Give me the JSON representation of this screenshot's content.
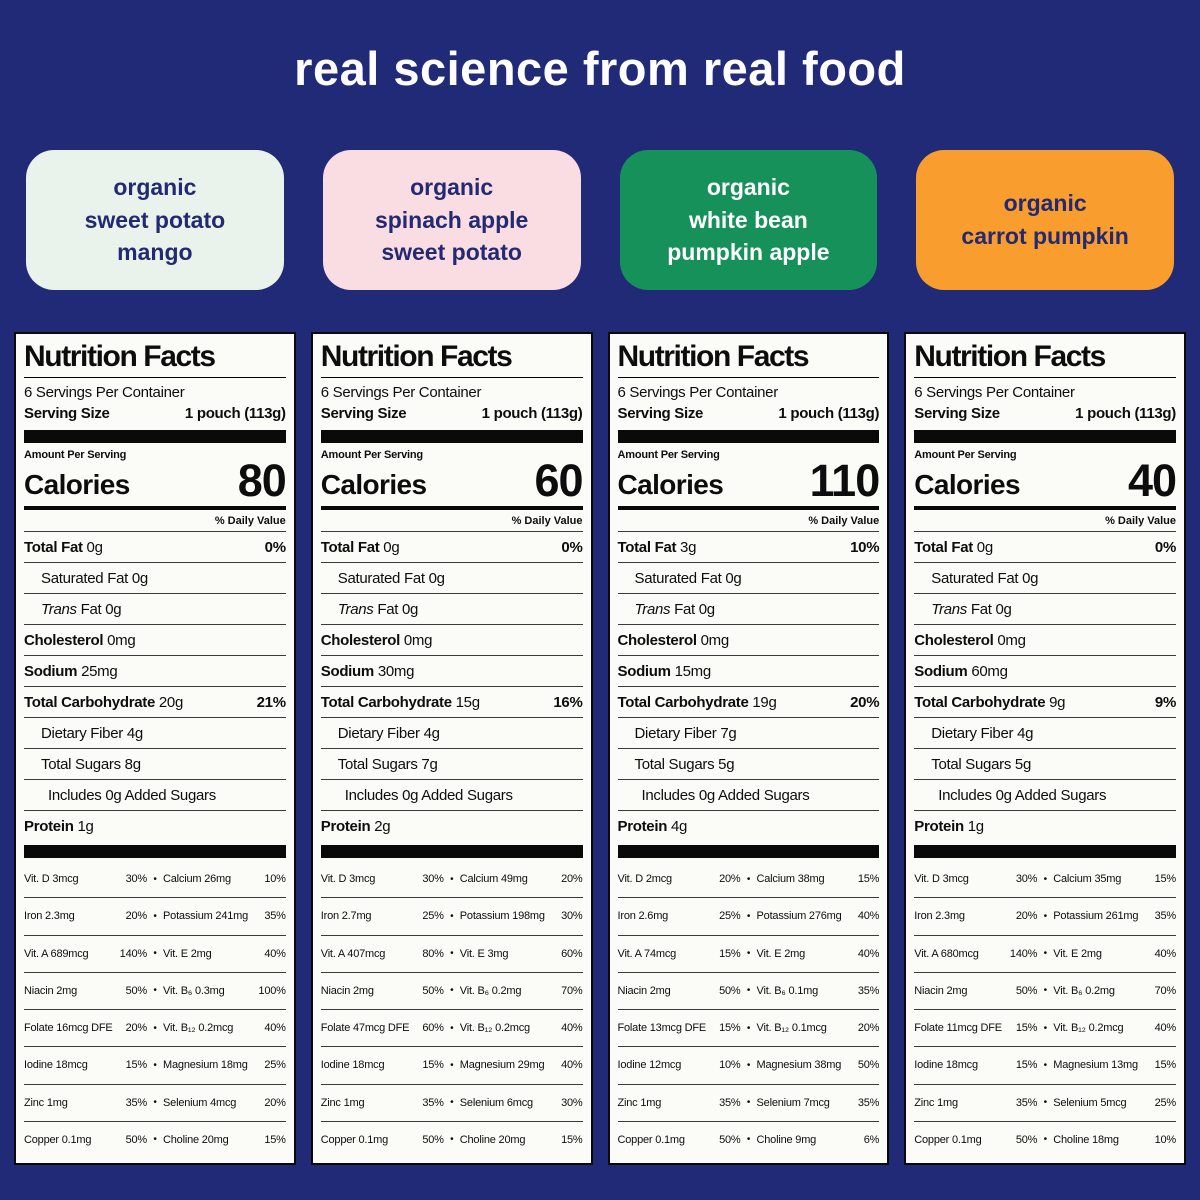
{
  "header": {
    "title": "real science from real food"
  },
  "colors": {
    "background": "#212a77",
    "panel_background": "#fbfbf7",
    "panel_border": "#0a0a0a",
    "label_text": "#0d0d0d",
    "title_text": "#fdfdff"
  },
  "label_common": {
    "title": "Nutrition Facts",
    "servings_per_container": "6 Servings Per Container",
    "serving_size_label": "Serving Size",
    "serving_size_value": "1 pouch (113g)",
    "amount_per_serving": "Amount Per Serving",
    "calories_label": "Calories",
    "daily_value_header": "% Daily Value",
    "column_bullet": "•"
  },
  "products": [
    {
      "pill": {
        "lines": [
          "organic",
          "sweet potato",
          "mango"
        ],
        "bg": "#e9f3ec",
        "text": "#232a72"
      },
      "calories": "80",
      "nutrients": [
        {
          "name": "Total Fat",
          "amount": "0g",
          "dv": "0%",
          "style": "bold"
        },
        {
          "name": "Saturated Fat",
          "amount": "0g",
          "dv": "",
          "style": "indent"
        },
        {
          "name": "Trans Fat",
          "amount": "0g",
          "dv": "",
          "style": "indent-italic"
        },
        {
          "name": "Cholesterol",
          "amount": "0mg",
          "dv": "",
          "style": "bold"
        },
        {
          "name": "Sodium",
          "amount": "25mg",
          "dv": "",
          "style": "bold"
        },
        {
          "name": "Total Carbohydrate",
          "amount": "20g",
          "dv": "21%",
          "style": "bold"
        },
        {
          "name": "Dietary Fiber",
          "amount": "4g",
          "dv": "",
          "style": "indent"
        },
        {
          "name": "Total Sugars",
          "amount": "8g",
          "dv": "",
          "style": "indent"
        },
        {
          "name": "Includes 0g Added Sugars",
          "amount": "",
          "dv": "",
          "style": "indent2"
        },
        {
          "name": "Protein",
          "amount": "1g",
          "dv": "",
          "style": "bold"
        }
      ],
      "micros": [
        {
          "left": "Vit. D 3mcg",
          "left_dv": "30%",
          "right": "Calcium 26mg",
          "right_dv": "10%"
        },
        {
          "left": "Iron 2.3mg",
          "left_dv": "20%",
          "right": "Potassium 241mg",
          "right_dv": "35%"
        },
        {
          "left": "Vit. A 689mcg",
          "left_dv": "140%",
          "right": "Vit. E 2mg",
          "right_dv": "40%"
        },
        {
          "left": "Niacin 2mg",
          "left_dv": "50%",
          "right": "Vit. B₆ 0.3mg",
          "right_dv": "100%"
        },
        {
          "left": "Folate 16mcg DFE",
          "left_dv": "20%",
          "right": "Vit. B₁₂ 0.2mcg",
          "right_dv": "40%"
        },
        {
          "left": "Iodine 18mcg",
          "left_dv": "15%",
          "right": "Magnesium 18mg",
          "right_dv": "25%"
        },
        {
          "left": "Zinc 1mg",
          "left_dv": "35%",
          "right": "Selenium 4mcg",
          "right_dv": "20%"
        },
        {
          "left": "Copper 0.1mg",
          "left_dv": "50%",
          "right": "Choline 20mg",
          "right_dv": "15%"
        }
      ]
    },
    {
      "pill": {
        "lines": [
          "organic",
          "spinach apple",
          "sweet potato"
        ],
        "bg": "#fadce3",
        "text": "#232a72"
      },
      "calories": "60",
      "nutrients": [
        {
          "name": "Total Fat",
          "amount": "0g",
          "dv": "0%",
          "style": "bold"
        },
        {
          "name": "Saturated Fat",
          "amount": "0g",
          "dv": "",
          "style": "indent"
        },
        {
          "name": "Trans Fat",
          "amount": "0g",
          "dv": "",
          "style": "indent-italic"
        },
        {
          "name": "Cholesterol",
          "amount": "0mg",
          "dv": "",
          "style": "bold"
        },
        {
          "name": "Sodium",
          "amount": "30mg",
          "dv": "",
          "style": "bold"
        },
        {
          "name": "Total Carbohydrate",
          "amount": "15g",
          "dv": "16%",
          "style": "bold"
        },
        {
          "name": "Dietary Fiber",
          "amount": "4g",
          "dv": "",
          "style": "indent"
        },
        {
          "name": "Total Sugars",
          "amount": "7g",
          "dv": "",
          "style": "indent"
        },
        {
          "name": "Includes 0g Added Sugars",
          "amount": "",
          "dv": "",
          "style": "indent2"
        },
        {
          "name": "Protein",
          "amount": "2g",
          "dv": "",
          "style": "bold"
        }
      ],
      "micros": [
        {
          "left": "Vit. D 3mcg",
          "left_dv": "30%",
          "right": "Calcium 49mg",
          "right_dv": "20%"
        },
        {
          "left": "Iron 2.7mg",
          "left_dv": "25%",
          "right": "Potassium 198mg",
          "right_dv": "30%"
        },
        {
          "left": "Vit. A 407mcg",
          "left_dv": "80%",
          "right": "Vit. E 3mg",
          "right_dv": "60%"
        },
        {
          "left": "Niacin 2mg",
          "left_dv": "50%",
          "right": "Vit. B₆ 0.2mg",
          "right_dv": "70%"
        },
        {
          "left": "Folate 47mcg DFE",
          "left_dv": "60%",
          "right": "Vit. B₁₂ 0.2mcg",
          "right_dv": "40%"
        },
        {
          "left": "Iodine 18mcg",
          "left_dv": "15%",
          "right": "Magnesium 29mg",
          "right_dv": "40%"
        },
        {
          "left": "Zinc 1mg",
          "left_dv": "35%",
          "right": "Selenium 6mcg",
          "right_dv": "30%"
        },
        {
          "left": "Copper 0.1mg",
          "left_dv": "50%",
          "right": "Choline 20mg",
          "right_dv": "15%"
        }
      ]
    },
    {
      "pill": {
        "lines": [
          "organic",
          "white bean",
          "pumpkin apple"
        ],
        "bg": "#17915a",
        "text": "#ffffff"
      },
      "calories": "110",
      "nutrients": [
        {
          "name": "Total Fat",
          "amount": "3g",
          "dv": "10%",
          "style": "bold"
        },
        {
          "name": "Saturated Fat",
          "amount": "0g",
          "dv": "",
          "style": "indent"
        },
        {
          "name": "Trans Fat",
          "amount": "0g",
          "dv": "",
          "style": "indent-italic"
        },
        {
          "name": "Cholesterol",
          "amount": "0mg",
          "dv": "",
          "style": "bold"
        },
        {
          "name": "Sodium",
          "amount": "15mg",
          "dv": "",
          "style": "bold"
        },
        {
          "name": "Total Carbohydrate",
          "amount": "19g",
          "dv": "20%",
          "style": "bold"
        },
        {
          "name": "Dietary Fiber",
          "amount": "7g",
          "dv": "",
          "style": "indent"
        },
        {
          "name": "Total Sugars",
          "amount": "5g",
          "dv": "",
          "style": "indent"
        },
        {
          "name": "Includes 0g Added Sugars",
          "amount": "",
          "dv": "",
          "style": "indent2"
        },
        {
          "name": "Protein",
          "amount": "4g",
          "dv": "",
          "style": "bold"
        }
      ],
      "micros": [
        {
          "left": "Vit. D 2mcg",
          "left_dv": "20%",
          "right": "Calcium 38mg",
          "right_dv": "15%"
        },
        {
          "left": "Iron 2.6mg",
          "left_dv": "25%",
          "right": "Potassium 276mg",
          "right_dv": "40%"
        },
        {
          "left": "Vit. A 74mcg",
          "left_dv": "15%",
          "right": "Vit. E 2mg",
          "right_dv": "40%"
        },
        {
          "left": "Niacin 2mg",
          "left_dv": "50%",
          "right": "Vit. B₆ 0.1mg",
          "right_dv": "35%"
        },
        {
          "left": "Folate 13mcg DFE",
          "left_dv": "15%",
          "right": "Vit. B₁₂ 0.1mcg",
          "right_dv": "20%"
        },
        {
          "left": "Iodine 12mcg",
          "left_dv": "10%",
          "right": "Magnesium 38mg",
          "right_dv": "50%"
        },
        {
          "left": "Zinc 1mg",
          "left_dv": "35%",
          "right": "Selenium 7mcg",
          "right_dv": "35%"
        },
        {
          "left": "Copper 0.1mg",
          "left_dv": "50%",
          "right": "Choline 9mg",
          "right_dv": "6%"
        }
      ]
    },
    {
      "pill": {
        "lines": [
          "organic",
          "carrot pumpkin"
        ],
        "bg": "#f89d2e",
        "text": "#232a72"
      },
      "calories": "40",
      "nutrients": [
        {
          "name": "Total Fat",
          "amount": "0g",
          "dv": "0%",
          "style": "bold"
        },
        {
          "name": "Saturated Fat",
          "amount": "0g",
          "dv": "",
          "style": "indent"
        },
        {
          "name": "Trans Fat",
          "amount": "0g",
          "dv": "",
          "style": "indent-italic"
        },
        {
          "name": "Cholesterol",
          "amount": "0mg",
          "dv": "",
          "style": "bold"
        },
        {
          "name": "Sodium",
          "amount": "60mg",
          "dv": "",
          "style": "bold"
        },
        {
          "name": "Total Carbohydrate",
          "amount": "9g",
          "dv": "9%",
          "style": "bold"
        },
        {
          "name": "Dietary Fiber",
          "amount": "4g",
          "dv": "",
          "style": "indent"
        },
        {
          "name": "Total Sugars",
          "amount": "5g",
          "dv": "",
          "style": "indent"
        },
        {
          "name": "Includes 0g Added Sugars",
          "amount": "",
          "dv": "",
          "style": "indent2"
        },
        {
          "name": "Protein",
          "amount": "1g",
          "dv": "",
          "style": "bold"
        }
      ],
      "micros": [
        {
          "left": "Vit. D 3mcg",
          "left_dv": "30%",
          "right": "Calcium 35mg",
          "right_dv": "15%"
        },
        {
          "left": "Iron 2.3mg",
          "left_dv": "20%",
          "right": "Potassium 261mg",
          "right_dv": "35%"
        },
        {
          "left": "Vit. A 680mcg",
          "left_dv": "140%",
          "right": "Vit. E 2mg",
          "right_dv": "40%"
        },
        {
          "left": "Niacin 2mg",
          "left_dv": "50%",
          "right": "Vit. B₆ 0.2mg",
          "right_dv": "70%"
        },
        {
          "left": "Folate 11mcg DFE",
          "left_dv": "15%",
          "right": "Vit. B₁₂ 0.2mcg",
          "right_dv": "40%"
        },
        {
          "left": "Iodine 18mcg",
          "left_dv": "15%",
          "right": "Magnesium 13mg",
          "right_dv": "15%"
        },
        {
          "left": "Zinc 1mg",
          "left_dv": "35%",
          "right": "Selenium 5mcg",
          "right_dv": "25%"
        },
        {
          "left": "Copper 0.1mg",
          "left_dv": "50%",
          "right": "Choline 18mg",
          "right_dv": "10%"
        }
      ]
    }
  ]
}
